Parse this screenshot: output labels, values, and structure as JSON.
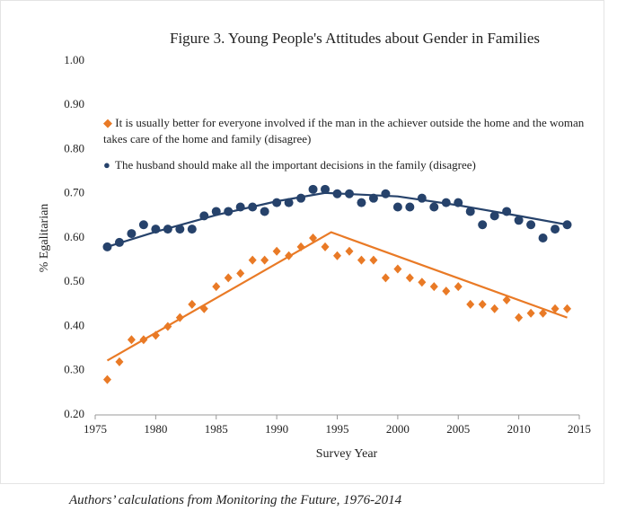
{
  "chart_data": {
    "type": "scatter",
    "title": "Figure 3. Young People's Attitudes about Gender in Families",
    "x_label": "Survey Year",
    "y_label": "% Egalitarian",
    "caption": "Authors’ calculations from Monitoring the Future, 1976-2014",
    "xlim": [
      1975,
      2015
    ],
    "xticks": [
      1975,
      1980,
      1985,
      1990,
      1995,
      2000,
      2005,
      2010,
      2015
    ],
    "ylim": [
      0.2,
      1.0
    ],
    "yticks": [
      {
        "value": 0.2,
        "label": "0.20"
      },
      {
        "value": 0.3,
        "label": "0.30"
      },
      {
        "value": 0.4,
        "label": "0.40"
      },
      {
        "value": 0.5,
        "label": "0.50"
      },
      {
        "value": 0.6,
        "label": "0.60"
      },
      {
        "value": 0.7,
        "label": "0.70"
      },
      {
        "value": 0.8,
        "label": "0.80"
      },
      {
        "value": 0.9,
        "label": "0.90"
      },
      {
        "value": 1.0,
        "label": "1.00"
      }
    ],
    "grid": false,
    "x": [
      1976,
      1977,
      1978,
      1979,
      1980,
      1981,
      1982,
      1983,
      1984,
      1985,
      1986,
      1987,
      1988,
      1989,
      1990,
      1991,
      1992,
      1993,
      1994,
      1995,
      1996,
      1997,
      1998,
      1999,
      2000,
      2001,
      2002,
      2003,
      2004,
      2005,
      2006,
      2007,
      2008,
      2009,
      2010,
      2011,
      2012,
      2013,
      2014
    ],
    "series": [
      {
        "name": "It is usually better for everyone involved if the man in the achiever outside the home and the woman takes care of the home and family (disagree)",
        "color": "#e97a26",
        "marker": "diamond",
        "values": [
          0.28,
          0.32,
          0.37,
          0.37,
          0.38,
          0.4,
          0.42,
          0.45,
          0.44,
          0.49,
          0.51,
          0.52,
          0.55,
          0.55,
          0.57,
          0.56,
          0.58,
          0.6,
          0.58,
          0.56,
          0.57,
          0.55,
          0.55,
          0.51,
          0.53,
          0.51,
          0.5,
          0.49,
          0.48,
          0.49,
          0.45,
          0.45,
          0.44,
          0.46,
          0.42,
          0.43,
          0.43,
          0.44,
          0.44
        ],
        "trend": {
          "x": [
            1976,
            1994.5,
            2014
          ],
          "values": [
            0.323,
            0.613,
            0.42
          ]
        }
      },
      {
        "name": "The husband should make all the important decisions in the family (disagree)",
        "color": "#26426b",
        "marker": "circle",
        "values": [
          0.58,
          0.59,
          0.61,
          0.63,
          0.62,
          0.62,
          0.62,
          0.62,
          0.65,
          0.66,
          0.66,
          0.67,
          0.67,
          0.66,
          0.68,
          0.68,
          0.69,
          0.71,
          0.71,
          0.7,
          0.7,
          0.68,
          0.69,
          0.7,
          0.67,
          0.67,
          0.69,
          0.67,
          0.68,
          0.68,
          0.66,
          0.63,
          0.65,
          0.66,
          0.64,
          0.63,
          0.6,
          0.62,
          0.63
        ],
        "trend": {
          "x": [
            1976,
            1980,
            1985,
            1990,
            1994,
            2000,
            2005,
            2010,
            2014
          ],
          "values": [
            0.58,
            0.614,
            0.652,
            0.683,
            0.702,
            0.694,
            0.674,
            0.65,
            0.63
          ]
        }
      }
    ]
  }
}
